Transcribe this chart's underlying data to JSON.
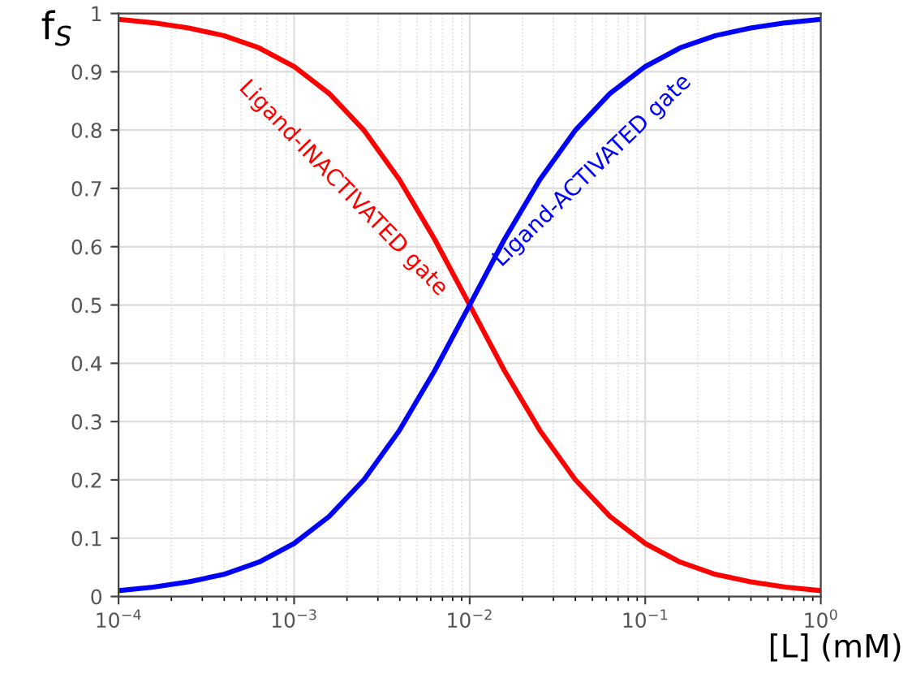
{
  "chart_data": {
    "type": "line",
    "xlabel": "[L] (mM)",
    "ylabel": "f$_{S}$",
    "x": [
      0.0001,
      0.000158,
      0.000251,
      0.000398,
      0.000631,
      0.001,
      0.00158,
      0.00251,
      0.00398,
      0.00631,
      0.01,
      0.0158,
      0.0251,
      0.0398,
      0.0631,
      0.1,
      0.158,
      0.251,
      0.398,
      0.631,
      1
    ],
    "series": [
      {
        "name": "Ligand-INACTIVATED gate",
        "color": "#ff0000",
        "values": [
          0.99,
          0.984,
          0.975,
          0.962,
          0.941,
          0.909,
          0.863,
          0.799,
          0.715,
          0.613,
          0.5,
          0.387,
          0.285,
          0.201,
          0.137,
          0.091,
          0.059,
          0.038,
          0.025,
          0.016,
          0.01
        ]
      },
      {
        "name": "Ligand-ACTIVATED gate",
        "color": "#0000ff",
        "values": [
          0.01,
          0.016,
          0.025,
          0.038,
          0.059,
          0.091,
          0.137,
          0.201,
          0.285,
          0.387,
          0.5,
          0.613,
          0.715,
          0.799,
          0.863,
          0.909,
          0.941,
          0.962,
          0.975,
          0.984,
          0.99
        ]
      }
    ],
    "log": "x",
    "xlim": [
      0.0001,
      1
    ],
    "ylim": [
      0,
      1
    ],
    "xticks": [
      {
        "value": 0.0001,
        "label": "10$^{−4}$"
      },
      {
        "value": 0.001,
        "label": "10$^{−3}$"
      },
      {
        "value": 0.01,
        "label": "10$^{−2}$"
      },
      {
        "value": 0.1,
        "label": "10$^{−1}$"
      },
      {
        "value": 1,
        "label": "10$^{0}$"
      }
    ],
    "yticks": [
      0,
      0.1,
      0.2,
      0.3,
      0.4,
      0.5,
      0.6,
      0.7,
      0.8,
      0.9,
      1
    ],
    "grid": true,
    "legend": false,
    "marker": "none",
    "line_style": "solid"
  }
}
